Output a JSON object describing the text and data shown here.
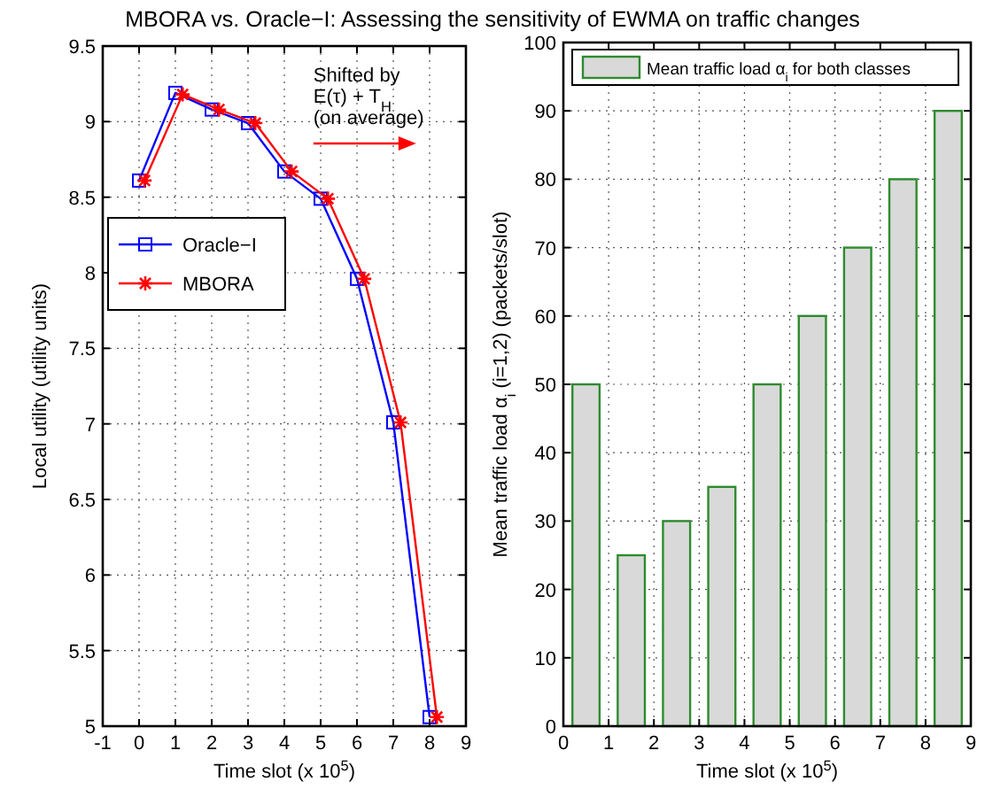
{
  "chart_data": [
    {
      "type": "line",
      "title": "MBORA vs. Oracle−I: Assessing the sensitivity of EWMA on traffic changes",
      "xlabel": "Time slot (x 10$^{5}$)",
      "ylabel": "Local utility (utility units)",
      "xlim": [
        -1,
        9
      ],
      "xticks": [
        -1,
        0,
        1,
        2,
        3,
        4,
        5,
        6,
        7,
        8,
        9
      ],
      "ylim": [
        5,
        9.5
      ],
      "yticks": [
        5,
        5.5,
        6,
        6.5,
        7,
        7.5,
        8,
        8.5,
        9,
        9.5
      ],
      "grid": true,
      "legend": "left",
      "line_style": "solid",
      "annotations": [
        "Shifted by\nE(τ) + T$_{H}$\n(on average)"
      ],
      "series": [
        {
          "name": "Oracle−I",
          "color": "#0000ff",
          "marker": "square",
          "x": [
            0,
            1,
            2,
            3,
            4,
            5,
            6,
            7,
            8
          ],
          "values": [
            8.61,
            9.19,
            9.08,
            8.99,
            8.67,
            8.49,
            7.96,
            7.01,
            5.06
          ]
        },
        {
          "name": "MBORA",
          "color": "#ff0000",
          "marker": "cross",
          "x": [
            0.15,
            1.2,
            2.2,
            3.2,
            4.2,
            5.2,
            6.2,
            7.2,
            8.2
          ],
          "values": [
            8.61,
            9.18,
            9.08,
            8.99,
            8.67,
            8.49,
            7.96,
            7.01,
            5.06
          ]
        }
      ]
    },
    {
      "type": "bar",
      "xlabel": "Time slot (x 10$^{5}$)",
      "ylabel": "Mean traffic load α$_{i}$ (i=1,2) (packets/slot)",
      "xlim": [
        0,
        9
      ],
      "xticks": [
        0,
        1,
        2,
        3,
        4,
        5,
        6,
        7,
        8,
        9
      ],
      "ylim": [
        0,
        100
      ],
      "yticks": [
        0,
        10,
        20,
        30,
        40,
        50,
        60,
        70,
        80,
        90,
        100
      ],
      "grid": true,
      "legend": "top",
      "x": [
        0.5,
        1.5,
        2.5,
        3.5,
        4.5,
        5.5,
        6.5,
        7.5,
        8.5
      ],
      "series": [
        {
          "name": "Mean traffic load α$_{i}$ for both classes",
          "color": "#d9d9d9",
          "values": [
            50,
            25,
            30,
            35,
            50,
            60,
            70,
            80,
            90
          ]
        }
      ]
    }
  ]
}
